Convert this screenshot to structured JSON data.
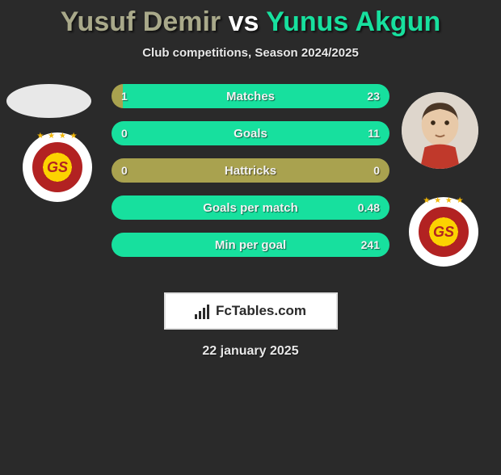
{
  "title": {
    "p1_name": "Yusuf Demir",
    "vs": "vs",
    "p2_name": "Yunus Akgun",
    "p1_color": "#a9a98a",
    "p2_color": "#17e09e"
  },
  "subtitle": "Club competitions, Season 2024/2025",
  "players": {
    "p1_club_initials": "GS",
    "p2_club_initials": "GS"
  },
  "colors": {
    "bar_p1": "#a9a24f",
    "bar_p2": "#17e09e",
    "bar_neutral": "#a9a24f",
    "background": "#2a2a2a"
  },
  "stats": [
    {
      "label": "Matches",
      "v1": "1",
      "v2": "23",
      "n1": 1,
      "n2": 23
    },
    {
      "label": "Goals",
      "v1": "0",
      "v2": "11",
      "n1": 0,
      "n2": 11
    },
    {
      "label": "Hattricks",
      "v1": "0",
      "v2": "0",
      "n1": 0,
      "n2": 0
    },
    {
      "label": "Goals per match",
      "v1": "",
      "v2": "0.48",
      "n1": 0,
      "n2": 0.48
    },
    {
      "label": "Min per goal",
      "v1": "",
      "v2": "241",
      "n1": 0,
      "n2": 241
    }
  ],
  "brand": "FcTables.com",
  "date": "22 january 2025"
}
